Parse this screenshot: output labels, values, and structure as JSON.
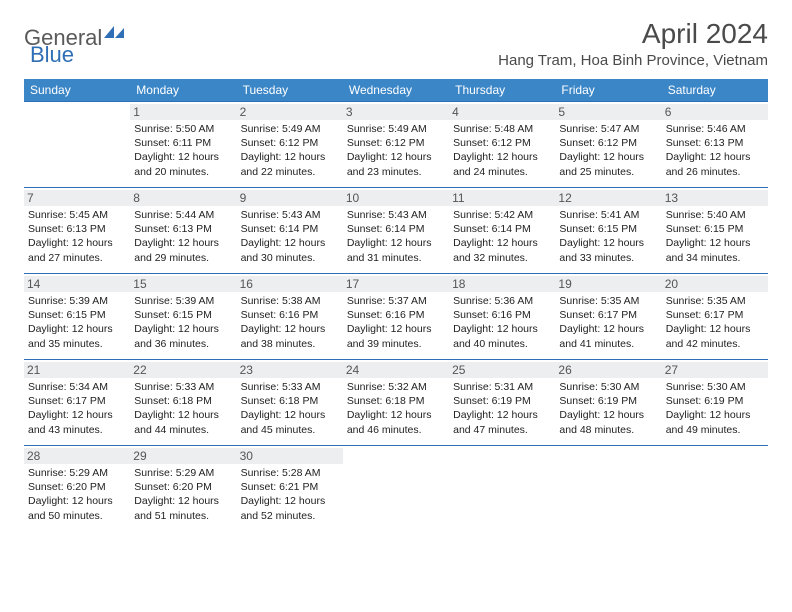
{
  "logo": {
    "word1": "General",
    "word2": "Blue",
    "color_gray": "#5a5a5a",
    "color_blue": "#2f6fb5"
  },
  "title": "April 2024",
  "location": "Hang Tram, Hoa Binh Province, Vietnam",
  "colors": {
    "header_bg": "#3b86c7",
    "header_text": "#ffffff",
    "border": "#2f6fb5",
    "daynum_bg": "#eceef0",
    "daynum_text": "#555555",
    "body_text": "#222222"
  },
  "weekdays": [
    "Sunday",
    "Monday",
    "Tuesday",
    "Wednesday",
    "Thursday",
    "Friday",
    "Saturday"
  ],
  "first_weekday_index": 1,
  "days": [
    {
      "n": 1,
      "sunrise": "5:50 AM",
      "sunset": "6:11 PM",
      "daylight": "12 hours and 20 minutes."
    },
    {
      "n": 2,
      "sunrise": "5:49 AM",
      "sunset": "6:12 PM",
      "daylight": "12 hours and 22 minutes."
    },
    {
      "n": 3,
      "sunrise": "5:49 AM",
      "sunset": "6:12 PM",
      "daylight": "12 hours and 23 minutes."
    },
    {
      "n": 4,
      "sunrise": "5:48 AM",
      "sunset": "6:12 PM",
      "daylight": "12 hours and 24 minutes."
    },
    {
      "n": 5,
      "sunrise": "5:47 AM",
      "sunset": "6:12 PM",
      "daylight": "12 hours and 25 minutes."
    },
    {
      "n": 6,
      "sunrise": "5:46 AM",
      "sunset": "6:13 PM",
      "daylight": "12 hours and 26 minutes."
    },
    {
      "n": 7,
      "sunrise": "5:45 AM",
      "sunset": "6:13 PM",
      "daylight": "12 hours and 27 minutes."
    },
    {
      "n": 8,
      "sunrise": "5:44 AM",
      "sunset": "6:13 PM",
      "daylight": "12 hours and 29 minutes."
    },
    {
      "n": 9,
      "sunrise": "5:43 AM",
      "sunset": "6:14 PM",
      "daylight": "12 hours and 30 minutes."
    },
    {
      "n": 10,
      "sunrise": "5:43 AM",
      "sunset": "6:14 PM",
      "daylight": "12 hours and 31 minutes."
    },
    {
      "n": 11,
      "sunrise": "5:42 AM",
      "sunset": "6:14 PM",
      "daylight": "12 hours and 32 minutes."
    },
    {
      "n": 12,
      "sunrise": "5:41 AM",
      "sunset": "6:15 PM",
      "daylight": "12 hours and 33 minutes."
    },
    {
      "n": 13,
      "sunrise": "5:40 AM",
      "sunset": "6:15 PM",
      "daylight": "12 hours and 34 minutes."
    },
    {
      "n": 14,
      "sunrise": "5:39 AM",
      "sunset": "6:15 PM",
      "daylight": "12 hours and 35 minutes."
    },
    {
      "n": 15,
      "sunrise": "5:39 AM",
      "sunset": "6:15 PM",
      "daylight": "12 hours and 36 minutes."
    },
    {
      "n": 16,
      "sunrise": "5:38 AM",
      "sunset": "6:16 PM",
      "daylight": "12 hours and 38 minutes."
    },
    {
      "n": 17,
      "sunrise": "5:37 AM",
      "sunset": "6:16 PM",
      "daylight": "12 hours and 39 minutes."
    },
    {
      "n": 18,
      "sunrise": "5:36 AM",
      "sunset": "6:16 PM",
      "daylight": "12 hours and 40 minutes."
    },
    {
      "n": 19,
      "sunrise": "5:35 AM",
      "sunset": "6:17 PM",
      "daylight": "12 hours and 41 minutes."
    },
    {
      "n": 20,
      "sunrise": "5:35 AM",
      "sunset": "6:17 PM",
      "daylight": "12 hours and 42 minutes."
    },
    {
      "n": 21,
      "sunrise": "5:34 AM",
      "sunset": "6:17 PM",
      "daylight": "12 hours and 43 minutes."
    },
    {
      "n": 22,
      "sunrise": "5:33 AM",
      "sunset": "6:18 PM",
      "daylight": "12 hours and 44 minutes."
    },
    {
      "n": 23,
      "sunrise": "5:33 AM",
      "sunset": "6:18 PM",
      "daylight": "12 hours and 45 minutes."
    },
    {
      "n": 24,
      "sunrise": "5:32 AM",
      "sunset": "6:18 PM",
      "daylight": "12 hours and 46 minutes."
    },
    {
      "n": 25,
      "sunrise": "5:31 AM",
      "sunset": "6:19 PM",
      "daylight": "12 hours and 47 minutes."
    },
    {
      "n": 26,
      "sunrise": "5:30 AM",
      "sunset": "6:19 PM",
      "daylight": "12 hours and 48 minutes."
    },
    {
      "n": 27,
      "sunrise": "5:30 AM",
      "sunset": "6:19 PM",
      "daylight": "12 hours and 49 minutes."
    },
    {
      "n": 28,
      "sunrise": "5:29 AM",
      "sunset": "6:20 PM",
      "daylight": "12 hours and 50 minutes."
    },
    {
      "n": 29,
      "sunrise": "5:29 AM",
      "sunset": "6:20 PM",
      "daylight": "12 hours and 51 minutes."
    },
    {
      "n": 30,
      "sunrise": "5:28 AM",
      "sunset": "6:21 PM",
      "daylight": "12 hours and 52 minutes."
    }
  ],
  "labels": {
    "sunrise": "Sunrise:",
    "sunset": "Sunset:",
    "daylight": "Daylight:"
  }
}
